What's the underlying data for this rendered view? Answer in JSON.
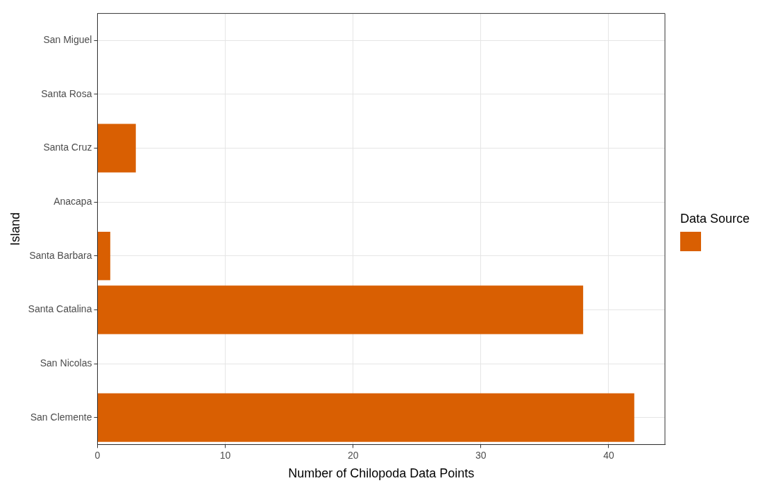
{
  "chart_data": {
    "type": "bar",
    "orientation": "horizontal",
    "xlabel": "Number of Chilopoda Data Points",
    "ylabel": "Island",
    "legend_title": "Data Source",
    "categories": [
      "San Miguel",
      "Santa Rosa",
      "Santa Cruz",
      "Anacapa",
      "Santa Barbara",
      "Santa Catalina",
      "San Nicolas",
      "San Clemente"
    ],
    "series": [
      {
        "color": "#d95f02",
        "values": [
          0,
          0,
          3,
          0,
          1,
          38,
          0,
          42
        ]
      }
    ],
    "xlim": [
      0,
      44.4
    ],
    "xticks": [
      0,
      10,
      20,
      30,
      40
    ],
    "grid": true
  }
}
